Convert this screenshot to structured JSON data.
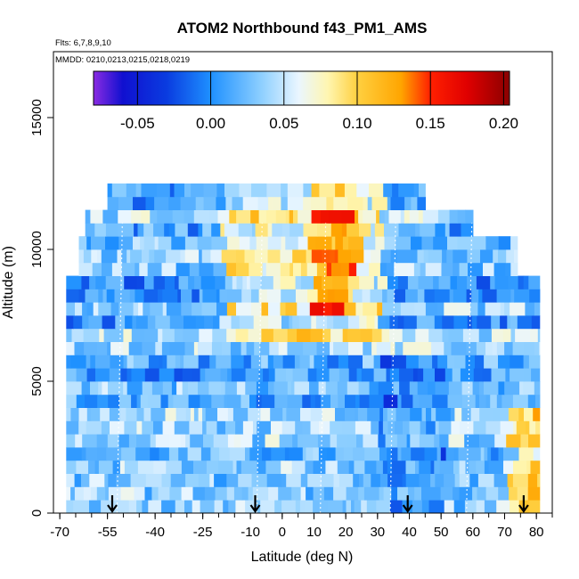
{
  "chart_data": {
    "type": "heatmap",
    "title": "ATOM2 Northbound f43_PM1_AMS",
    "flights_note": "Flts: 6,7,8,9,10",
    "dates_note": "MMDD: 0210,0213,0215,0218,0219",
    "xlabel": "Latitude (deg N)",
    "ylabel": "Altitude (m)",
    "xlim": [
      -72,
      85
    ],
    "ylim": [
      0,
      17500
    ],
    "x_ticks": [
      -70,
      -55,
      -40,
      -25,
      -10,
      0,
      10,
      20,
      30,
      40,
      50,
      60,
      70,
      80
    ],
    "y_ticks": [
      0,
      5000,
      10000,
      15000
    ],
    "colorbar": {
      "range": [
        -0.08,
        0.204
      ],
      "ticks": [
        -0.05,
        0.0,
        0.05,
        0.1,
        0.15,
        0.2
      ],
      "tick_labels": [
        "-0.05",
        "0.00",
        "0.05",
        "0.10",
        "0.15",
        "0.20"
      ],
      "stops": [
        {
          "v": -0.08,
          "c": "#8a2be2"
        },
        {
          "v": -0.06,
          "c": "#1010d0"
        },
        {
          "v": -0.03,
          "c": "#0a3ce0"
        },
        {
          "v": 0.0,
          "c": "#1e90ff"
        },
        {
          "v": 0.035,
          "c": "#8fd0ff"
        },
        {
          "v": 0.06,
          "c": "#eaf6ff"
        },
        {
          "v": 0.08,
          "c": "#fff6b0"
        },
        {
          "v": 0.1,
          "c": "#ffd040"
        },
        {
          "v": 0.13,
          "c": "#ffa500"
        },
        {
          "v": 0.15,
          "c": "#ff2000"
        },
        {
          "v": 0.175,
          "c": "#e00000"
        },
        {
          "v": 0.204,
          "c": "#8b0000"
        }
      ]
    },
    "flight_bands": [
      {
        "lat_range": [
          -70,
          -32
        ],
        "value": 0.01
      },
      {
        "lat_range": [
          -32,
          15
        ],
        "value": 0.04
      },
      {
        "lat_range": [
          15,
          47
        ],
        "value": 0.03
      },
      {
        "lat_range": [
          47,
          82
        ],
        "value": 0.05
      }
    ],
    "arrows_lat": [
      -53.5,
      -8.5,
      39.5,
      76
    ]
  }
}
